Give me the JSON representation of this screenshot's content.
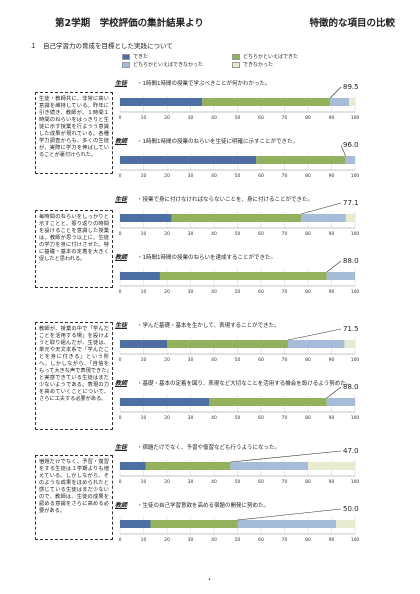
{
  "title": "第2学期　学校評価の集計結果より",
  "title_right": "特徴的な項目の比較",
  "section_heading": "１　自己学習力の育成を目標とした実践について",
  "legend": [
    {
      "label": "できた",
      "color": "#4e6fa3"
    },
    {
      "label": "どちらかといえばできた",
      "color": "#94b15e"
    },
    {
      "label": "どちらかといえばできなかった",
      "color": "#a6bcd8"
    },
    {
      "label": "できなかった",
      "color": "#e7ecd0"
    }
  ],
  "axis_ticks": [
    "0",
    "10",
    "20",
    "30",
    "40",
    "50",
    "60",
    "70",
    "80",
    "90",
    "100"
  ],
  "comments": [
    "生徒・教師共に、非常に高い意識を維持している。昨年に引き続き、教師が、１時間１時間のねらいをはっきりと生徒に示す授業を行ようう意識した成果が現れている。各種学力調査からも、多くの生徒が、実際に学力を伸ばしていることが裏付けられた。",
    "毎時間のねらいをしっかりと示すことと、振り返りの時間を設けることを意識した授業は、教師が思う以上に、生徒の学力を身に付けさせた。特に基礎・基本の定着を大きく促したと思われる。",
    "教師が、授業の中で「学んだことを活用する場」を設けようと取り組んだが、生徒は、単元や天文本系で「学んだことを身に付きる」という所へ。しかしながら、「自信をもって大きな声で表現できた」と実感できている生徒はまだ少ないようである。表現の力を高めていくことについて、さらに工夫する必要がある。",
    "宿題だけでなく、予習・復習をする生徒は１学期よりも増えている。しかしながら、そのような成果をほめられたと感じている生徒はまだ少ないので、教師は、生徒の成果を認める意識をさらに高める必要がある。"
  ],
  "chart_data": [
    {
      "type": "bar",
      "group": "生徒",
      "label": "・1時間1時間の授業で学ぶべきことが何かわかった。",
      "values": [
        35,
        54.5,
        8,
        2.5
      ],
      "pct": "89.5",
      "xlim": [
        0,
        100
      ]
    },
    {
      "type": "bar",
      "group": "教師",
      "label": "・1時間1時間の授業のねらいを生徒に明確に示すことができた。",
      "values": [
        58,
        38,
        4,
        0
      ],
      "pct": "96.0",
      "xlim": [
        0,
        100
      ]
    },
    {
      "type": "bar",
      "group": "生徒",
      "label": "・授業で身に付けなければならないことを、身に付けることができた。",
      "values": [
        22,
        55.1,
        19,
        3.9
      ],
      "pct": "77.1",
      "xlim": [
        0,
        100
      ]
    },
    {
      "type": "bar",
      "group": "教師",
      "label": "・1時間1時間の授業のねらいを達成することができた。",
      "values": [
        17,
        71,
        12,
        0
      ],
      "pct": "88.0",
      "xlim": [
        0,
        100
      ]
    },
    {
      "type": "bar",
      "group": "生徒",
      "label": "・学んだ基礎・基本を生かして、表現することができた。",
      "values": [
        20,
        51.5,
        24,
        4.5
      ],
      "pct": "71.5",
      "xlim": [
        0,
        100
      ]
    },
    {
      "type": "bar",
      "group": "教師",
      "label": "・基礎・基本の定着を図り、表現など大切なことを活用する機会を設けるよう努めた。",
      "values": [
        38,
        50,
        12,
        0
      ],
      "pct": "88.0",
      "xlim": [
        0,
        100
      ]
    },
    {
      "type": "bar",
      "group": "生徒",
      "label": "・宿題だけでなく、予習や復習なども行うようになった。",
      "values": [
        11,
        36,
        33,
        20
      ],
      "pct": "47.0",
      "xlim": [
        0,
        100
      ]
    },
    {
      "type": "bar",
      "group": "教師",
      "label": "・生徒の自己学習意欲を高める宿題の開発に努めた。",
      "values": [
        13,
        37,
        42,
        8
      ],
      "pct": "50.0",
      "xlim": [
        0,
        100
      ]
    }
  ]
}
